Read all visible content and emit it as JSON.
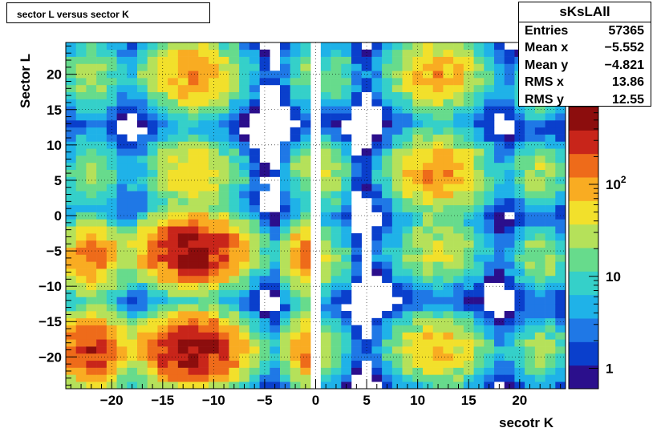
{
  "title": "sector L versus sector K",
  "stats": {
    "name": "sKsLAll",
    "rows": [
      {
        "label": "Entries",
        "value": "57365"
      },
      {
        "label": "Mean x",
        "value": "−5.552"
      },
      {
        "label": "Mean y",
        "value": "−4.821"
      },
      {
        "label": "RMS x",
        "value": "13.86"
      },
      {
        "label": "RMS y",
        "value": "12.55"
      }
    ]
  },
  "chart_data": {
    "type": "heatmap",
    "xlabel": "secotr K",
    "ylabel": "Sector L",
    "xlim": [
      -24.5,
      24.5
    ],
    "ylim": [
      -24.5,
      24.5
    ],
    "xticks": [
      "−20",
      "−15",
      "−10",
      "−5",
      "0",
      "5",
      "10",
      "15",
      "20"
    ],
    "xtick_values": [
      -20,
      -15,
      -10,
      -5,
      0,
      5,
      10,
      15,
      20
    ],
    "yticks": [
      "20",
      "15",
      "10",
      "5",
      "0",
      "−5",
      "−10",
      "−15",
      "−20"
    ],
    "ytick_values": [
      20,
      15,
      10,
      5,
      0,
      -5,
      -10,
      -15,
      -20
    ],
    "z_scale": "log",
    "zlim": [
      0.6,
      700
    ],
    "zticks": [
      {
        "label": "1",
        "value": 1
      },
      {
        "label": "10",
        "value": 10
      },
      {
        "label": "10",
        "sup": "2",
        "value": 100
      }
    ],
    "palette": [
      "#2b0f8c",
      "#0a3fcc",
      "#1f78e6",
      "#1fb2e8",
      "#35d0c9",
      "#67db8c",
      "#b5e15a",
      "#f2e02b",
      "#f9ac22",
      "#ee6b1a",
      "#c8251a",
      "#8c0d0d"
    ],
    "grid": true,
    "bin_width": 1,
    "clusters": [
      {
        "x": -22,
        "y": 20,
        "sx": 1.6,
        "sy": 3.0,
        "peak": 28
      },
      {
        "x": -12,
        "y": 20,
        "sx": 2.4,
        "sy": 2.8,
        "peak": 110
      },
      {
        "x": -1,
        "y": 20,
        "sx": 1.1,
        "sy": 2.6,
        "peak": 20
      },
      {
        "x": 2,
        "y": 20,
        "sx": 1.1,
        "sy": 2.6,
        "peak": 18
      },
      {
        "x": 12,
        "y": 20,
        "sx": 2.4,
        "sy": 2.8,
        "peak": 90
      },
      {
        "x": 22,
        "y": 18,
        "sx": 1.6,
        "sy": 2.5,
        "peak": 20
      },
      {
        "x": -22,
        "y": 6,
        "sx": 1.6,
        "sy": 3.0,
        "peak": 22
      },
      {
        "x": -12,
        "y": 6,
        "sx": 2.4,
        "sy": 2.8,
        "peak": 60
      },
      {
        "x": -1,
        "y": 6,
        "sx": 1.1,
        "sy": 2.6,
        "peak": 25
      },
      {
        "x": 1.5,
        "y": 6,
        "sx": 1.0,
        "sy": 2.6,
        "peak": 35
      },
      {
        "x": 12,
        "y": 6,
        "sx": 2.4,
        "sy": 2.8,
        "peak": 120
      },
      {
        "x": 22,
        "y": 6,
        "sx": 1.6,
        "sy": 2.5,
        "peak": 30
      },
      {
        "x": -22,
        "y": -6,
        "sx": 1.6,
        "sy": 2.6,
        "peak": 150
      },
      {
        "x": -12,
        "y": -5,
        "sx": 2.6,
        "sy": 2.4,
        "peak": 500
      },
      {
        "x": -1,
        "y": -6,
        "sx": 1.1,
        "sy": 2.6,
        "peak": 150
      },
      {
        "x": 2,
        "y": -6,
        "sx": 1.0,
        "sy": 2.6,
        "peak": 18
      },
      {
        "x": 12,
        "y": -5,
        "sx": 2.4,
        "sy": 2.6,
        "peak": 40
      },
      {
        "x": 22,
        "y": -6,
        "sx": 1.6,
        "sy": 2.6,
        "peak": 25
      },
      {
        "x": -22,
        "y": -19,
        "sx": 1.6,
        "sy": 2.6,
        "peak": 300
      },
      {
        "x": -12,
        "y": -19,
        "sx": 2.6,
        "sy": 2.4,
        "peak": 500
      },
      {
        "x": -1,
        "y": -19,
        "sx": 1.1,
        "sy": 2.6,
        "peak": 120
      },
      {
        "x": 2,
        "y": -19,
        "sx": 1.0,
        "sy": 2.6,
        "peak": 15
      },
      {
        "x": 12,
        "y": -19,
        "sx": 2.4,
        "sy": 2.6,
        "peak": 80
      },
      {
        "x": 22,
        "y": -19,
        "sx": 1.6,
        "sy": 2.6,
        "peak": 25
      }
    ],
    "streaks": [
      {
        "x": -17,
        "y": 20,
        "value": 6
      },
      {
        "x": -16,
        "y": 19,
        "value": 5
      },
      {
        "x": -6,
        "y": 21,
        "value": 3
      },
      {
        "x": -4,
        "y": 20,
        "value": 2
      },
      {
        "x": 5,
        "y": 20,
        "value": 3
      },
      {
        "x": 7,
        "y": 20,
        "value": 2
      },
      {
        "x": -17,
        "y": 5,
        "value": 4
      },
      {
        "x": -18,
        "y": 4,
        "value": 3
      },
      {
        "x": -7,
        "y": 5,
        "value": 3
      },
      {
        "x": -5,
        "y": 4,
        "value": 2
      },
      {
        "x": 6,
        "y": 5,
        "value": 3
      },
      {
        "x": 7,
        "y": 4,
        "value": 2
      },
      {
        "x": 17,
        "y": 5,
        "value": 3
      },
      {
        "x": -17,
        "y": -5,
        "value": 2
      },
      {
        "x": -7,
        "y": -6,
        "value": 6
      },
      {
        "x": -5,
        "y": -5,
        "value": 3
      },
      {
        "x": 6,
        "y": -6,
        "value": 2
      },
      {
        "x": 7,
        "y": -5,
        "value": 3
      },
      {
        "x": 17,
        "y": -5,
        "value": 3
      },
      {
        "x": -17,
        "y": -19,
        "value": 3
      },
      {
        "x": -6,
        "y": -18,
        "value": 2
      },
      {
        "x": 5,
        "y": -20,
        "value": 2
      },
      {
        "x": 7,
        "y": -18,
        "value": 3
      },
      {
        "x": 17,
        "y": -18,
        "value": 2
      }
    ]
  }
}
